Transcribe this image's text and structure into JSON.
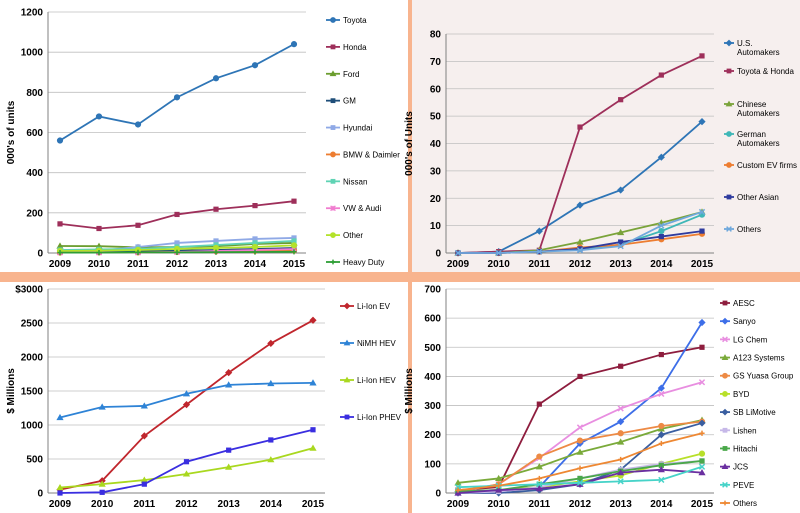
{
  "chart_data": [
    {
      "type": "line",
      "ylabel": "000's of units",
      "ylim": [
        0,
        1200
      ],
      "yticks": [
        0,
        200,
        400,
        600,
        800,
        1000,
        1200
      ],
      "x": [
        "2009",
        "2010",
        "2011",
        "2012",
        "2013",
        "2014",
        "2015"
      ],
      "legend_position": "right",
      "series": [
        {
          "name": "Toyota",
          "color": "#2e75b6",
          "marker": "circle",
          "values": [
            560,
            680,
            640,
            775,
            870,
            935,
            1040
          ]
        },
        {
          "name": "Honda",
          "color": "#9e2f5a",
          "marker": "square",
          "values": [
            145,
            122,
            138,
            192,
            218,
            236,
            258
          ]
        },
        {
          "name": "Ford",
          "color": "#6b9d2e",
          "marker": "triangle",
          "values": [
            35,
            34,
            28,
            30,
            34,
            45,
            50
          ]
        },
        {
          "name": "GM",
          "color": "#1f4e79",
          "marker": "square",
          "values": [
            5,
            6,
            8,
            12,
            15,
            20,
            25
          ]
        },
        {
          "name": "Hyundai",
          "color": "#8fa9e6",
          "marker": "square",
          "values": [
            10,
            12,
            30,
            50,
            60,
            70,
            75
          ]
        },
        {
          "name": "BMW & Daimler",
          "color": "#ed7d31",
          "marker": "circle",
          "values": [
            2,
            3,
            3,
            5,
            8,
            10,
            12
          ]
        },
        {
          "name": "Nissan",
          "color": "#5fd3b4",
          "marker": "square",
          "values": [
            15,
            18,
            20,
            30,
            40,
            50,
            60
          ]
        },
        {
          "name": "VW & Audi",
          "color": "#f07ccf",
          "marker": "star",
          "values": [
            3,
            3,
            3,
            5,
            10,
            15,
            20
          ]
        },
        {
          "name": "Other",
          "color": "#b3e22a",
          "marker": "circle",
          "values": [
            10,
            12,
            15,
            20,
            25,
            30,
            38
          ]
        },
        {
          "name": "Heavy Duty",
          "color": "#2e9e35",
          "marker": "plus",
          "values": [
            2,
            2,
            3,
            3,
            4,
            5,
            6
          ]
        }
      ]
    },
    {
      "type": "line",
      "ylabel": "000's of Units",
      "ylim": [
        0,
        80
      ],
      "yticks": [
        0,
        10,
        20,
        30,
        40,
        50,
        60,
        70,
        80
      ],
      "x": [
        "2009",
        "2010",
        "2011",
        "2012",
        "2013",
        "2014",
        "2015"
      ],
      "legend_position": "right",
      "series": [
        {
          "name": "U.S. Automakers",
          "color": "#2e75b6",
          "marker": "diamond",
          "values": [
            0,
            0.5,
            8,
            17.5,
            23,
            35,
            48
          ]
        },
        {
          "name": "Toyota & Honda",
          "color": "#9e2f5a",
          "marker": "square",
          "values": [
            0,
            0.5,
            1,
            46,
            56,
            65,
            72
          ]
        },
        {
          "name": "Chinese Automakers",
          "color": "#7aa33a",
          "marker": "triangle",
          "values": [
            0,
            0,
            1,
            4,
            7.5,
            11,
            15
          ]
        },
        {
          "name": "German Automakers",
          "color": "#3fb7b7",
          "marker": "circle",
          "values": [
            0,
            0,
            0.5,
            1.5,
            3,
            8,
            14
          ]
        },
        {
          "name": "Custom EV firms",
          "color": "#ed7d31",
          "marker": "circle",
          "values": [
            0,
            0,
            0.5,
            2,
            3,
            5,
            7
          ]
        },
        {
          "name": "Other Asian",
          "color": "#2f3b9e",
          "marker": "square",
          "values": [
            0,
            0,
            0.5,
            1.5,
            4,
            6,
            8
          ]
        },
        {
          "name": "Others",
          "color": "#6fa8dc",
          "marker": "x",
          "values": [
            0,
            0,
            0.5,
            1,
            2.5,
            10,
            15
          ]
        }
      ]
    },
    {
      "type": "line",
      "ylabel": "$ Millions",
      "ylim": [
        0,
        3000
      ],
      "yticks": [
        "0",
        "500",
        "1000",
        "1500",
        "2000",
        "2500",
        "3000"
      ],
      "yticks_text": [
        "0",
        "500",
        "1000",
        "1500",
        "2000",
        "2500",
        "$3000"
      ],
      "x": [
        "2009",
        "2010",
        "2011",
        "2012",
        "2013",
        "2014",
        "2015"
      ],
      "legend_position": "right",
      "series": [
        {
          "name": "Li-Ion EV",
          "color": "#c0262d",
          "marker": "diamond",
          "values": [
            50,
            180,
            840,
            1300,
            1770,
            2200,
            2540
          ]
        },
        {
          "name": "NiMH HEV",
          "color": "#2e83d6",
          "marker": "triangle",
          "values": [
            1110,
            1265,
            1280,
            1460,
            1590,
            1610,
            1620
          ]
        },
        {
          "name": "Li-Ion HEV",
          "color": "#a9d81f",
          "marker": "triangle",
          "values": [
            80,
            130,
            190,
            280,
            380,
            490,
            660
          ]
        },
        {
          "name": "Li-Ion PHEV",
          "color": "#3a2ee0",
          "marker": "square",
          "values": [
            0,
            10,
            130,
            460,
            630,
            780,
            930
          ]
        }
      ]
    },
    {
      "type": "line",
      "ylabel": "$ Millions",
      "ylim": [
        0,
        700
      ],
      "yticks": [
        0,
        100,
        200,
        300,
        400,
        500,
        600,
        700
      ],
      "x": [
        "2009",
        "2010",
        "2011",
        "2012",
        "2013",
        "2014",
        "2015"
      ],
      "legend_position": "right",
      "series": [
        {
          "name": "AESC",
          "color": "#8e1d3e",
          "marker": "square",
          "values": [
            10,
            20,
            305,
            400,
            435,
            475,
            500
          ]
        },
        {
          "name": "Sanyo",
          "color": "#3d6ee8",
          "marker": "diamond",
          "values": [
            5,
            10,
            20,
            170,
            245,
            360,
            585
          ]
        },
        {
          "name": "LG Chem",
          "color": "#e88ee0",
          "marker": "x",
          "values": [
            5,
            30,
            120,
            225,
            290,
            340,
            380
          ]
        },
        {
          "name": "A123 Systems",
          "color": "#7aaa3a",
          "marker": "triangle",
          "values": [
            35,
            50,
            90,
            140,
            175,
            220,
            250
          ]
        },
        {
          "name": "GS Yuasa Group",
          "color": "#ed8a45",
          "marker": "circle",
          "values": [
            5,
            30,
            125,
            180,
            205,
            230,
            245
          ]
        },
        {
          "name": "BYD",
          "color": "#b8e02a",
          "marker": "circle",
          "values": [
            5,
            10,
            20,
            40,
            60,
            100,
            135
          ]
        },
        {
          "name": "SB LiMotive",
          "color": "#3a5ea0",
          "marker": "diamond",
          "values": [
            0,
            0,
            10,
            30,
            80,
            200,
            240
          ]
        },
        {
          "name": "Lishen",
          "color": "#c6b8e8",
          "marker": "square",
          "values": [
            0,
            5,
            20,
            50,
            80,
            100,
            110
          ]
        },
        {
          "name": "Hitachi",
          "color": "#4aa84a",
          "marker": "square",
          "values": [
            5,
            10,
            30,
            50,
            75,
            95,
            110
          ]
        },
        {
          "name": "JCS",
          "color": "#6a2fa0",
          "marker": "triangle",
          "values": [
            0,
            10,
            15,
            30,
            70,
            80,
            70
          ]
        },
        {
          "name": "PEVE",
          "color": "#46d3c8",
          "marker": "x",
          "values": [
            20,
            25,
            30,
            35,
            40,
            45,
            90
          ]
        },
        {
          "name": "Others",
          "color": "#ee8833",
          "marker": "plus",
          "values": [
            10,
            25,
            50,
            85,
            115,
            170,
            205
          ]
        }
      ]
    }
  ]
}
